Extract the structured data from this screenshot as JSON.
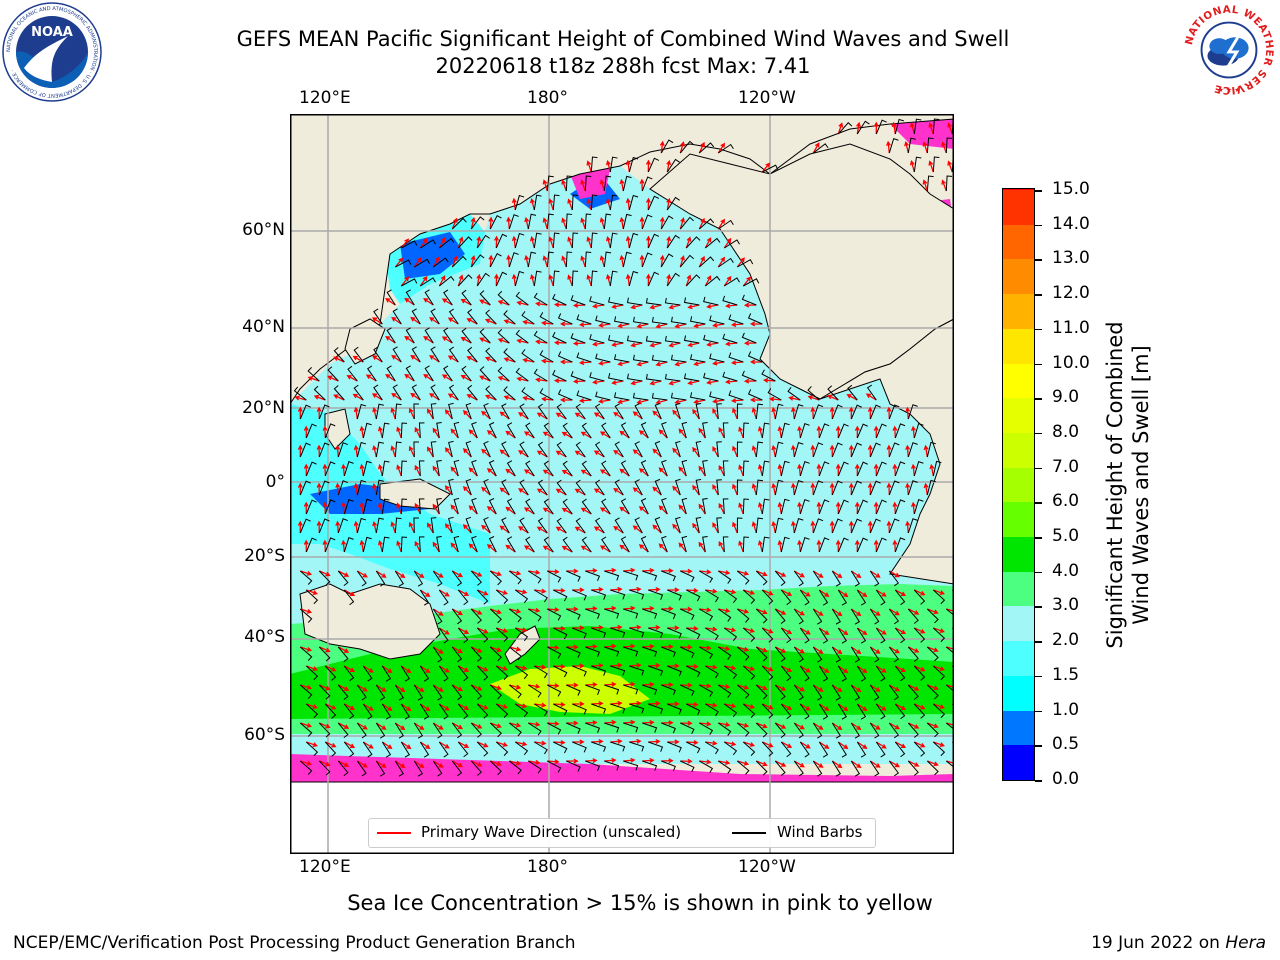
{
  "title": {
    "line1": "GEFS MEAN Pacific Significant Height of Combined Wind Waves and Swell",
    "line2": "20220618 t18z 288h fcst   Max: 7.41"
  },
  "map": {
    "lon_labels": [
      "120°E",
      "180°",
      "120°W"
    ],
    "lat_labels": [
      "60°N",
      "40°N",
      "20°N",
      "0°",
      "20°S",
      "40°S",
      "60°S"
    ],
    "colors": {
      "land": "#efecdc",
      "ocean_low": "#00ffff",
      "ocean_mid": "#4dffff",
      "ocean_main": "#a2f6f6",
      "ocean_green1": "#4dff80",
      "ocean_green2": "#00e600",
      "ocean_green3": "#66ff00",
      "ocean_yellow": "#ccff00",
      "shallow_blue": "#0066ff",
      "deep_blue": "#0000ff",
      "ice": "#ff33cc",
      "wave_arrow": "#ff0000",
      "wind_barb": "#000000",
      "grid": "#aaaaaa"
    }
  },
  "colorbar": {
    "labels": [
      "15.0",
      "14.0",
      "13.0",
      "12.0",
      "11.0",
      "10.0",
      "9.0",
      "8.0",
      "7.0",
      "6.0",
      "5.0",
      "4.0",
      "3.0",
      "2.0",
      "1.5",
      "1.0",
      "0.5",
      "0.0"
    ],
    "colors": [
      "#0000ff",
      "#0077ff",
      "#00ffff",
      "#4dffff",
      "#a2f6f6",
      "#4dff80",
      "#00e600",
      "#66ff00",
      "#a6ff00",
      "#ccff00",
      "#e6ff00",
      "#ffff00",
      "#ffe600",
      "#ffb300",
      "#ff8c00",
      "#ff6600",
      "#ff3300",
      "#ff0000"
    ],
    "title_line1": "Significant Height of Combined",
    "title_line2": "Wind Waves and Swell [m]"
  },
  "legend": {
    "wave_direction": "Primary Wave Direction (unscaled)",
    "wind_barbs": "Wind Barbs"
  },
  "sea_ice_note": "Sea Ice Concentration > 15% is shown in pink to yellow",
  "footer": {
    "left": "NCEP/EMC/Verification Post Processing Product Generation Branch",
    "right_prefix": "19 Jun 2022 on ",
    "right_host": "Hera"
  },
  "logos": {
    "noaa_text": "NOAA",
    "noaa_ring": "NATIONAL OCEANIC AND ATMOSPHERIC ADMINISTRATION · U.S. DEPARTMENT OF COMMERCE ·",
    "nws_ring": "NATIONAL WEATHER SERVICE"
  }
}
